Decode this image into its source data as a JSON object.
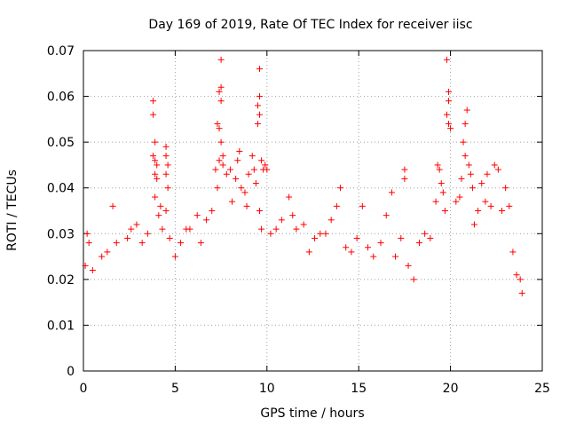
{
  "chart_data": {
    "type": "scatter",
    "title": "Day 169 of 2019, Rate Of TEC Index for receiver iisc",
    "xlabel": "GPS time / hours",
    "ylabel": "ROTI / TECUs",
    "xlim": [
      0,
      25
    ],
    "ylim": [
      0,
      0.07
    ],
    "xticks": [
      "0",
      "5",
      "10",
      "15",
      "20",
      "25"
    ],
    "yticks": [
      "0",
      "0.01",
      "0.02",
      "0.03",
      "0.04",
      "0.05",
      "0.06",
      "0.07"
    ],
    "grid": true,
    "marker": "+",
    "color": "#ff0000",
    "series": [
      {
        "name": "ROTI",
        "points": [
          [
            0.1,
            0.023
          ],
          [
            0.2,
            0.03
          ],
          [
            0.3,
            0.028
          ],
          [
            0.5,
            0.022
          ],
          [
            1.0,
            0.025
          ],
          [
            1.3,
            0.026
          ],
          [
            1.6,
            0.036
          ],
          [
            1.8,
            0.028
          ],
          [
            2.4,
            0.029
          ],
          [
            2.6,
            0.031
          ],
          [
            2.9,
            0.032
          ],
          [
            3.2,
            0.028
          ],
          [
            3.5,
            0.03
          ],
          [
            3.8,
            0.059
          ],
          [
            3.8,
            0.056
          ],
          [
            3.9,
            0.05
          ],
          [
            3.8,
            0.047
          ],
          [
            3.9,
            0.046
          ],
          [
            4.0,
            0.045
          ],
          [
            3.9,
            0.043
          ],
          [
            4.0,
            0.042
          ],
          [
            3.9,
            0.038
          ],
          [
            4.1,
            0.034
          ],
          [
            4.2,
            0.036
          ],
          [
            4.3,
            0.031
          ],
          [
            4.5,
            0.049
          ],
          [
            4.5,
            0.047
          ],
          [
            4.6,
            0.045
          ],
          [
            4.5,
            0.043
          ],
          [
            4.6,
            0.04
          ],
          [
            4.5,
            0.035
          ],
          [
            4.7,
            0.029
          ],
          [
            5.0,
            0.025
          ],
          [
            5.3,
            0.028
          ],
          [
            5.6,
            0.031
          ],
          [
            5.8,
            0.031
          ],
          [
            6.2,
            0.034
          ],
          [
            6.4,
            0.028
          ],
          [
            6.7,
            0.033
          ],
          [
            7.0,
            0.035
          ],
          [
            7.2,
            0.044
          ],
          [
            7.3,
            0.04
          ],
          [
            7.4,
            0.061
          ],
          [
            7.5,
            0.062
          ],
          [
            7.5,
            0.059
          ],
          [
            7.3,
            0.054
          ],
          [
            7.4,
            0.053
          ],
          [
            7.5,
            0.05
          ],
          [
            7.4,
            0.046
          ],
          [
            7.6,
            0.047
          ],
          [
            7.5,
            0.068
          ],
          [
            7.6,
            0.045
          ],
          [
            7.8,
            0.043
          ],
          [
            8.0,
            0.044
          ],
          [
            8.1,
            0.037
          ],
          [
            8.3,
            0.042
          ],
          [
            8.4,
            0.046
          ],
          [
            8.5,
            0.048
          ],
          [
            8.6,
            0.04
          ],
          [
            8.8,
            0.039
          ],
          [
            8.9,
            0.036
          ],
          [
            9.0,
            0.043
          ],
          [
            9.2,
            0.047
          ],
          [
            9.3,
            0.044
          ],
          [
            9.4,
            0.041
          ],
          [
            9.5,
            0.058
          ],
          [
            9.6,
            0.056
          ],
          [
            9.5,
            0.054
          ],
          [
            9.6,
            0.066
          ],
          [
            9.6,
            0.06
          ],
          [
            9.7,
            0.046
          ],
          [
            9.8,
            0.044
          ],
          [
            9.9,
            0.045
          ],
          [
            10.0,
            0.044
          ],
          [
            9.6,
            0.035
          ],
          [
            9.7,
            0.031
          ],
          [
            10.2,
            0.03
          ],
          [
            10.5,
            0.031
          ],
          [
            10.8,
            0.033
          ],
          [
            11.2,
            0.038
          ],
          [
            11.4,
            0.034
          ],
          [
            11.6,
            0.031
          ],
          [
            12.0,
            0.032
          ],
          [
            12.3,
            0.026
          ],
          [
            12.6,
            0.029
          ],
          [
            12.9,
            0.03
          ],
          [
            13.2,
            0.03
          ],
          [
            13.5,
            0.033
          ],
          [
            13.8,
            0.036
          ],
          [
            14.0,
            0.04
          ],
          [
            14.3,
            0.027
          ],
          [
            14.6,
            0.026
          ],
          [
            14.9,
            0.029
          ],
          [
            15.2,
            0.036
          ],
          [
            15.5,
            0.027
          ],
          [
            15.8,
            0.025
          ],
          [
            16.2,
            0.028
          ],
          [
            16.5,
            0.034
          ],
          [
            16.8,
            0.039
          ],
          [
            17.0,
            0.025
          ],
          [
            17.3,
            0.029
          ],
          [
            17.5,
            0.044
          ],
          [
            17.5,
            0.042
          ],
          [
            17.7,
            0.023
          ],
          [
            18.0,
            0.02
          ],
          [
            18.3,
            0.028
          ],
          [
            18.6,
            0.03
          ],
          [
            18.9,
            0.029
          ],
          [
            19.2,
            0.037
          ],
          [
            19.3,
            0.045
          ],
          [
            19.4,
            0.044
          ],
          [
            19.5,
            0.041
          ],
          [
            19.6,
            0.039
          ],
          [
            19.8,
            0.068
          ],
          [
            19.9,
            0.061
          ],
          [
            19.9,
            0.059
          ],
          [
            19.8,
            0.056
          ],
          [
            19.9,
            0.054
          ],
          [
            20.0,
            0.053
          ],
          [
            19.7,
            0.035
          ],
          [
            20.3,
            0.037
          ],
          [
            20.5,
            0.038
          ],
          [
            20.6,
            0.042
          ],
          [
            20.7,
            0.05
          ],
          [
            20.8,
            0.054
          ],
          [
            20.9,
            0.057
          ],
          [
            20.8,
            0.047
          ],
          [
            21.0,
            0.045
          ],
          [
            21.1,
            0.043
          ],
          [
            21.2,
            0.04
          ],
          [
            21.3,
            0.032
          ],
          [
            21.5,
            0.035
          ],
          [
            21.7,
            0.041
          ],
          [
            21.9,
            0.037
          ],
          [
            22.0,
            0.043
          ],
          [
            22.2,
            0.036
          ],
          [
            22.4,
            0.045
          ],
          [
            22.6,
            0.044
          ],
          [
            22.8,
            0.035
          ],
          [
            23.0,
            0.04
          ],
          [
            23.2,
            0.036
          ],
          [
            23.4,
            0.026
          ],
          [
            23.6,
            0.021
          ],
          [
            23.8,
            0.02
          ],
          [
            23.9,
            0.017
          ]
        ]
      }
    ]
  }
}
